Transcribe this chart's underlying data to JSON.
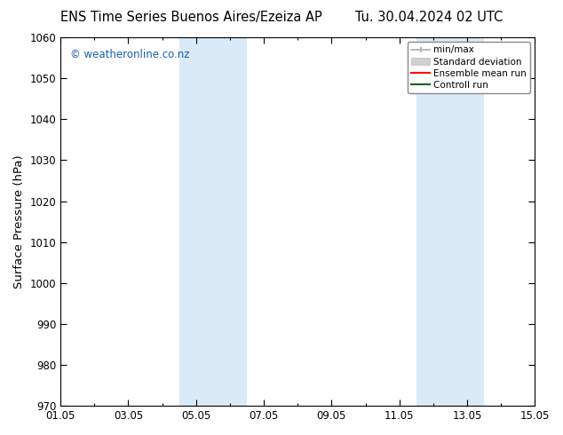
{
  "title_left": "ENS Time Series Buenos Aires/Ezeiza AP",
  "title_right": "Tu. 30.04.2024 02 UTC",
  "ylabel": "Surface Pressure (hPa)",
  "ylim": [
    970,
    1060
  ],
  "yticks": [
    970,
    980,
    990,
    1000,
    1010,
    1020,
    1030,
    1040,
    1050,
    1060
  ],
  "xlim": [
    0,
    14
  ],
  "xtick_positions": [
    0,
    2,
    4,
    6,
    8,
    10,
    12,
    14
  ],
  "xtick_labels": [
    "01.05",
    "03.05",
    "05.05",
    "07.05",
    "09.05",
    "11.05",
    "13.05",
    "15.05"
  ],
  "shaded_regions": [
    {
      "xmin": 3.5,
      "xmax": 5.5
    },
    {
      "xmin": 10.5,
      "xmax": 12.5
    }
  ],
  "shade_color": "#daeaf7",
  "shade_alpha": 1.0,
  "watermark": "© weatheronline.co.nz",
  "watermark_color": "#1a5eb5",
  "bg_color": "#ffffff",
  "spine_color": "#000000",
  "title_fontsize": 10.5,
  "tick_fontsize": 8.5,
  "ylabel_fontsize": 9.5
}
